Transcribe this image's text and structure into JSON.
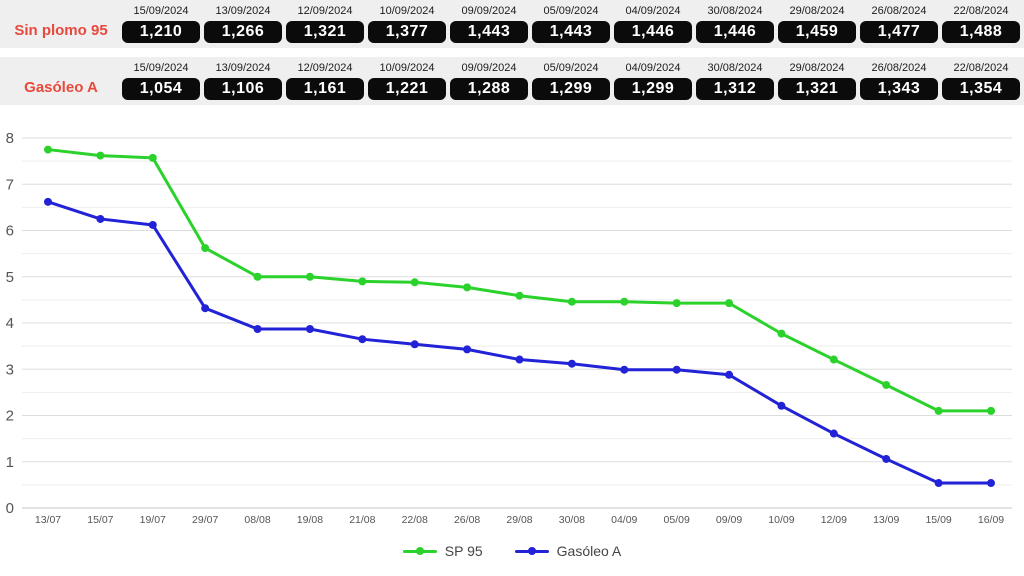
{
  "price_table": {
    "label_color": "#e8493e",
    "row_bg": "#efefef",
    "pill_bg": "#0b0b0b",
    "pill_text_color": "#ffffff",
    "rows": [
      {
        "label": "Sin plomo 95",
        "cells": [
          {
            "date": "15/09/2024",
            "value": "1,210"
          },
          {
            "date": "13/09/2024",
            "value": "1,266"
          },
          {
            "date": "12/09/2024",
            "value": "1,321"
          },
          {
            "date": "10/09/2024",
            "value": "1,377"
          },
          {
            "date": "09/09/2024",
            "value": "1,443"
          },
          {
            "date": "05/09/2024",
            "value": "1,443"
          },
          {
            "date": "04/09/2024",
            "value": "1,446"
          },
          {
            "date": "30/08/2024",
            "value": "1,446"
          },
          {
            "date": "29/08/2024",
            "value": "1,459"
          },
          {
            "date": "26/08/2024",
            "value": "1,477"
          },
          {
            "date": "22/08/2024",
            "value": "1,488"
          }
        ]
      },
      {
        "label": "Gasóleo A",
        "cells": [
          {
            "date": "15/09/2024",
            "value": "1,054"
          },
          {
            "date": "13/09/2024",
            "value": "1,106"
          },
          {
            "date": "12/09/2024",
            "value": "1,161"
          },
          {
            "date": "10/09/2024",
            "value": "1,221"
          },
          {
            "date": "09/09/2024",
            "value": "1,288"
          },
          {
            "date": "05/09/2024",
            "value": "1,299"
          },
          {
            "date": "04/09/2024",
            "value": "1,299"
          },
          {
            "date": "30/08/2024",
            "value": "1,312"
          },
          {
            "date": "29/08/2024",
            "value": "1,321"
          },
          {
            "date": "26/08/2024",
            "value": "1,343"
          },
          {
            "date": "22/08/2024",
            "value": "1,354"
          }
        ]
      }
    ]
  },
  "chart_data": {
    "type": "line",
    "x": [
      "13/07",
      "15/07",
      "19/07",
      "29/07",
      "08/08",
      "19/08",
      "21/08",
      "22/08",
      "26/08",
      "29/08",
      "30/08",
      "04/09",
      "05/09",
      "09/09",
      "10/09",
      "12/09",
      "13/09",
      "15/09",
      "16/09"
    ],
    "series": [
      {
        "name": "SP 95",
        "color": "#2bd22b",
        "values": [
          7.75,
          7.62,
          7.57,
          5.62,
          5.0,
          5.0,
          4.9,
          4.88,
          4.77,
          4.59,
          4.46,
          4.46,
          4.43,
          4.43,
          3.77,
          3.21,
          2.66,
          2.1,
          2.1
        ]
      },
      {
        "name": "Gasóleo A",
        "color": "#2222d6",
        "values": [
          6.62,
          6.25,
          6.12,
          4.32,
          3.87,
          3.87,
          3.65,
          3.54,
          3.43,
          3.21,
          3.12,
          2.99,
          2.99,
          2.88,
          2.21,
          1.61,
          1.06,
          0.54,
          0.54
        ]
      }
    ],
    "ylim": [
      0,
      8
    ],
    "yticks": [
      0,
      1,
      2,
      3,
      4,
      5,
      6,
      7,
      8
    ],
    "minor_grid_step": 0.5,
    "grid": "horizontal, major at integers, minor at halves",
    "legend_position": "bottom-center",
    "xlabel": "",
    "ylabel": ""
  }
}
